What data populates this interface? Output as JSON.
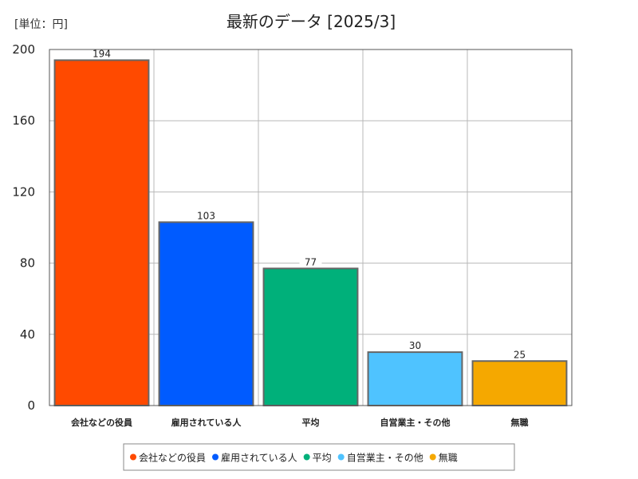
{
  "chart_data": {
    "type": "bar",
    "title": "最新のデータ [2025/3]",
    "unit_label": "[単位：円]",
    "categories": [
      "会社などの役員",
      "雇用されている人",
      "平均",
      "自営業主・その他",
      "無職"
    ],
    "values": [
      194,
      103,
      77,
      30,
      25
    ],
    "colors": [
      "#ff4a00",
      "#005bff",
      "#00b07a",
      "#4fc3ff",
      "#f5a800"
    ],
    "ylim": [
      0,
      200
    ],
    "yticks": [
      0,
      40,
      80,
      120,
      160,
      200
    ],
    "grid": true,
    "legend_position": "bottom-center",
    "xlabel": "",
    "ylabel": ""
  }
}
